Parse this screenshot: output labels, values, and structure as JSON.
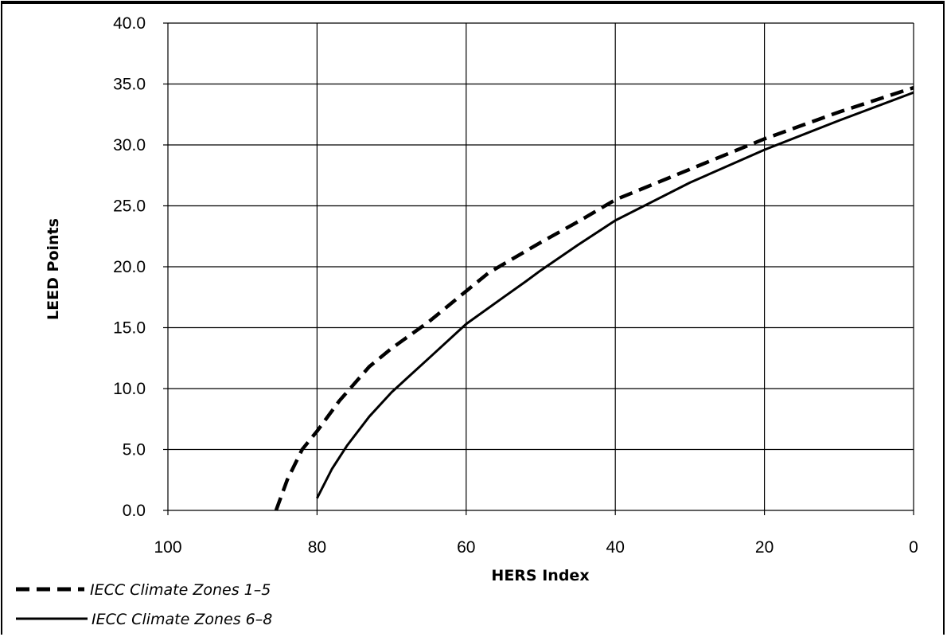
{
  "chart_data": {
    "type": "line",
    "title": "",
    "xlabel": "HERS Index",
    "ylabel": "LEED Points",
    "xlim": [
      100,
      0
    ],
    "ylim": [
      0,
      40
    ],
    "x_reversed": true,
    "xticks": [
      "100",
      "80",
      "60",
      "40",
      "20",
      "0"
    ],
    "yticks": [
      "0.0",
      "5.0",
      "10.0",
      "15.0",
      "20.0",
      "25.0",
      "30.0",
      "35.0",
      "40.0"
    ],
    "grid": true,
    "legend_position": "bottom-left",
    "series": [
      {
        "name": "IECC Climate Zones 1–5",
        "style": "dashed",
        "points": [
          [
            85.5,
            0
          ],
          [
            84,
            2.5
          ],
          [
            82,
            5
          ],
          [
            80,
            6.5
          ],
          [
            77,
            9
          ],
          [
            73,
            11.8
          ],
          [
            70,
            13.3
          ],
          [
            65,
            15.5
          ],
          [
            60,
            18
          ],
          [
            57,
            19.5
          ],
          [
            50,
            22
          ],
          [
            45,
            23.7
          ],
          [
            40,
            25.5
          ],
          [
            30,
            28
          ],
          [
            20,
            30.5
          ],
          [
            10,
            32.7
          ],
          [
            0,
            34.7
          ]
        ]
      },
      {
        "name": "IECC Climate Zones 6–8",
        "style": "solid",
        "points": [
          [
            80,
            1
          ],
          [
            78,
            3.4
          ],
          [
            76,
            5.3
          ],
          [
            73,
            7.7
          ],
          [
            70,
            9.7
          ],
          [
            65,
            12.5
          ],
          [
            60,
            15.3
          ],
          [
            55,
            17.5
          ],
          [
            52,
            18.8
          ],
          [
            50,
            19.7
          ],
          [
            45,
            21.8
          ],
          [
            40,
            23.8
          ],
          [
            30,
            26.9
          ],
          [
            20,
            29.6
          ],
          [
            10,
            32
          ],
          [
            0,
            34.3
          ]
        ]
      }
    ],
    "colors": {
      "line": "#000000",
      "grid": "#000000"
    }
  }
}
